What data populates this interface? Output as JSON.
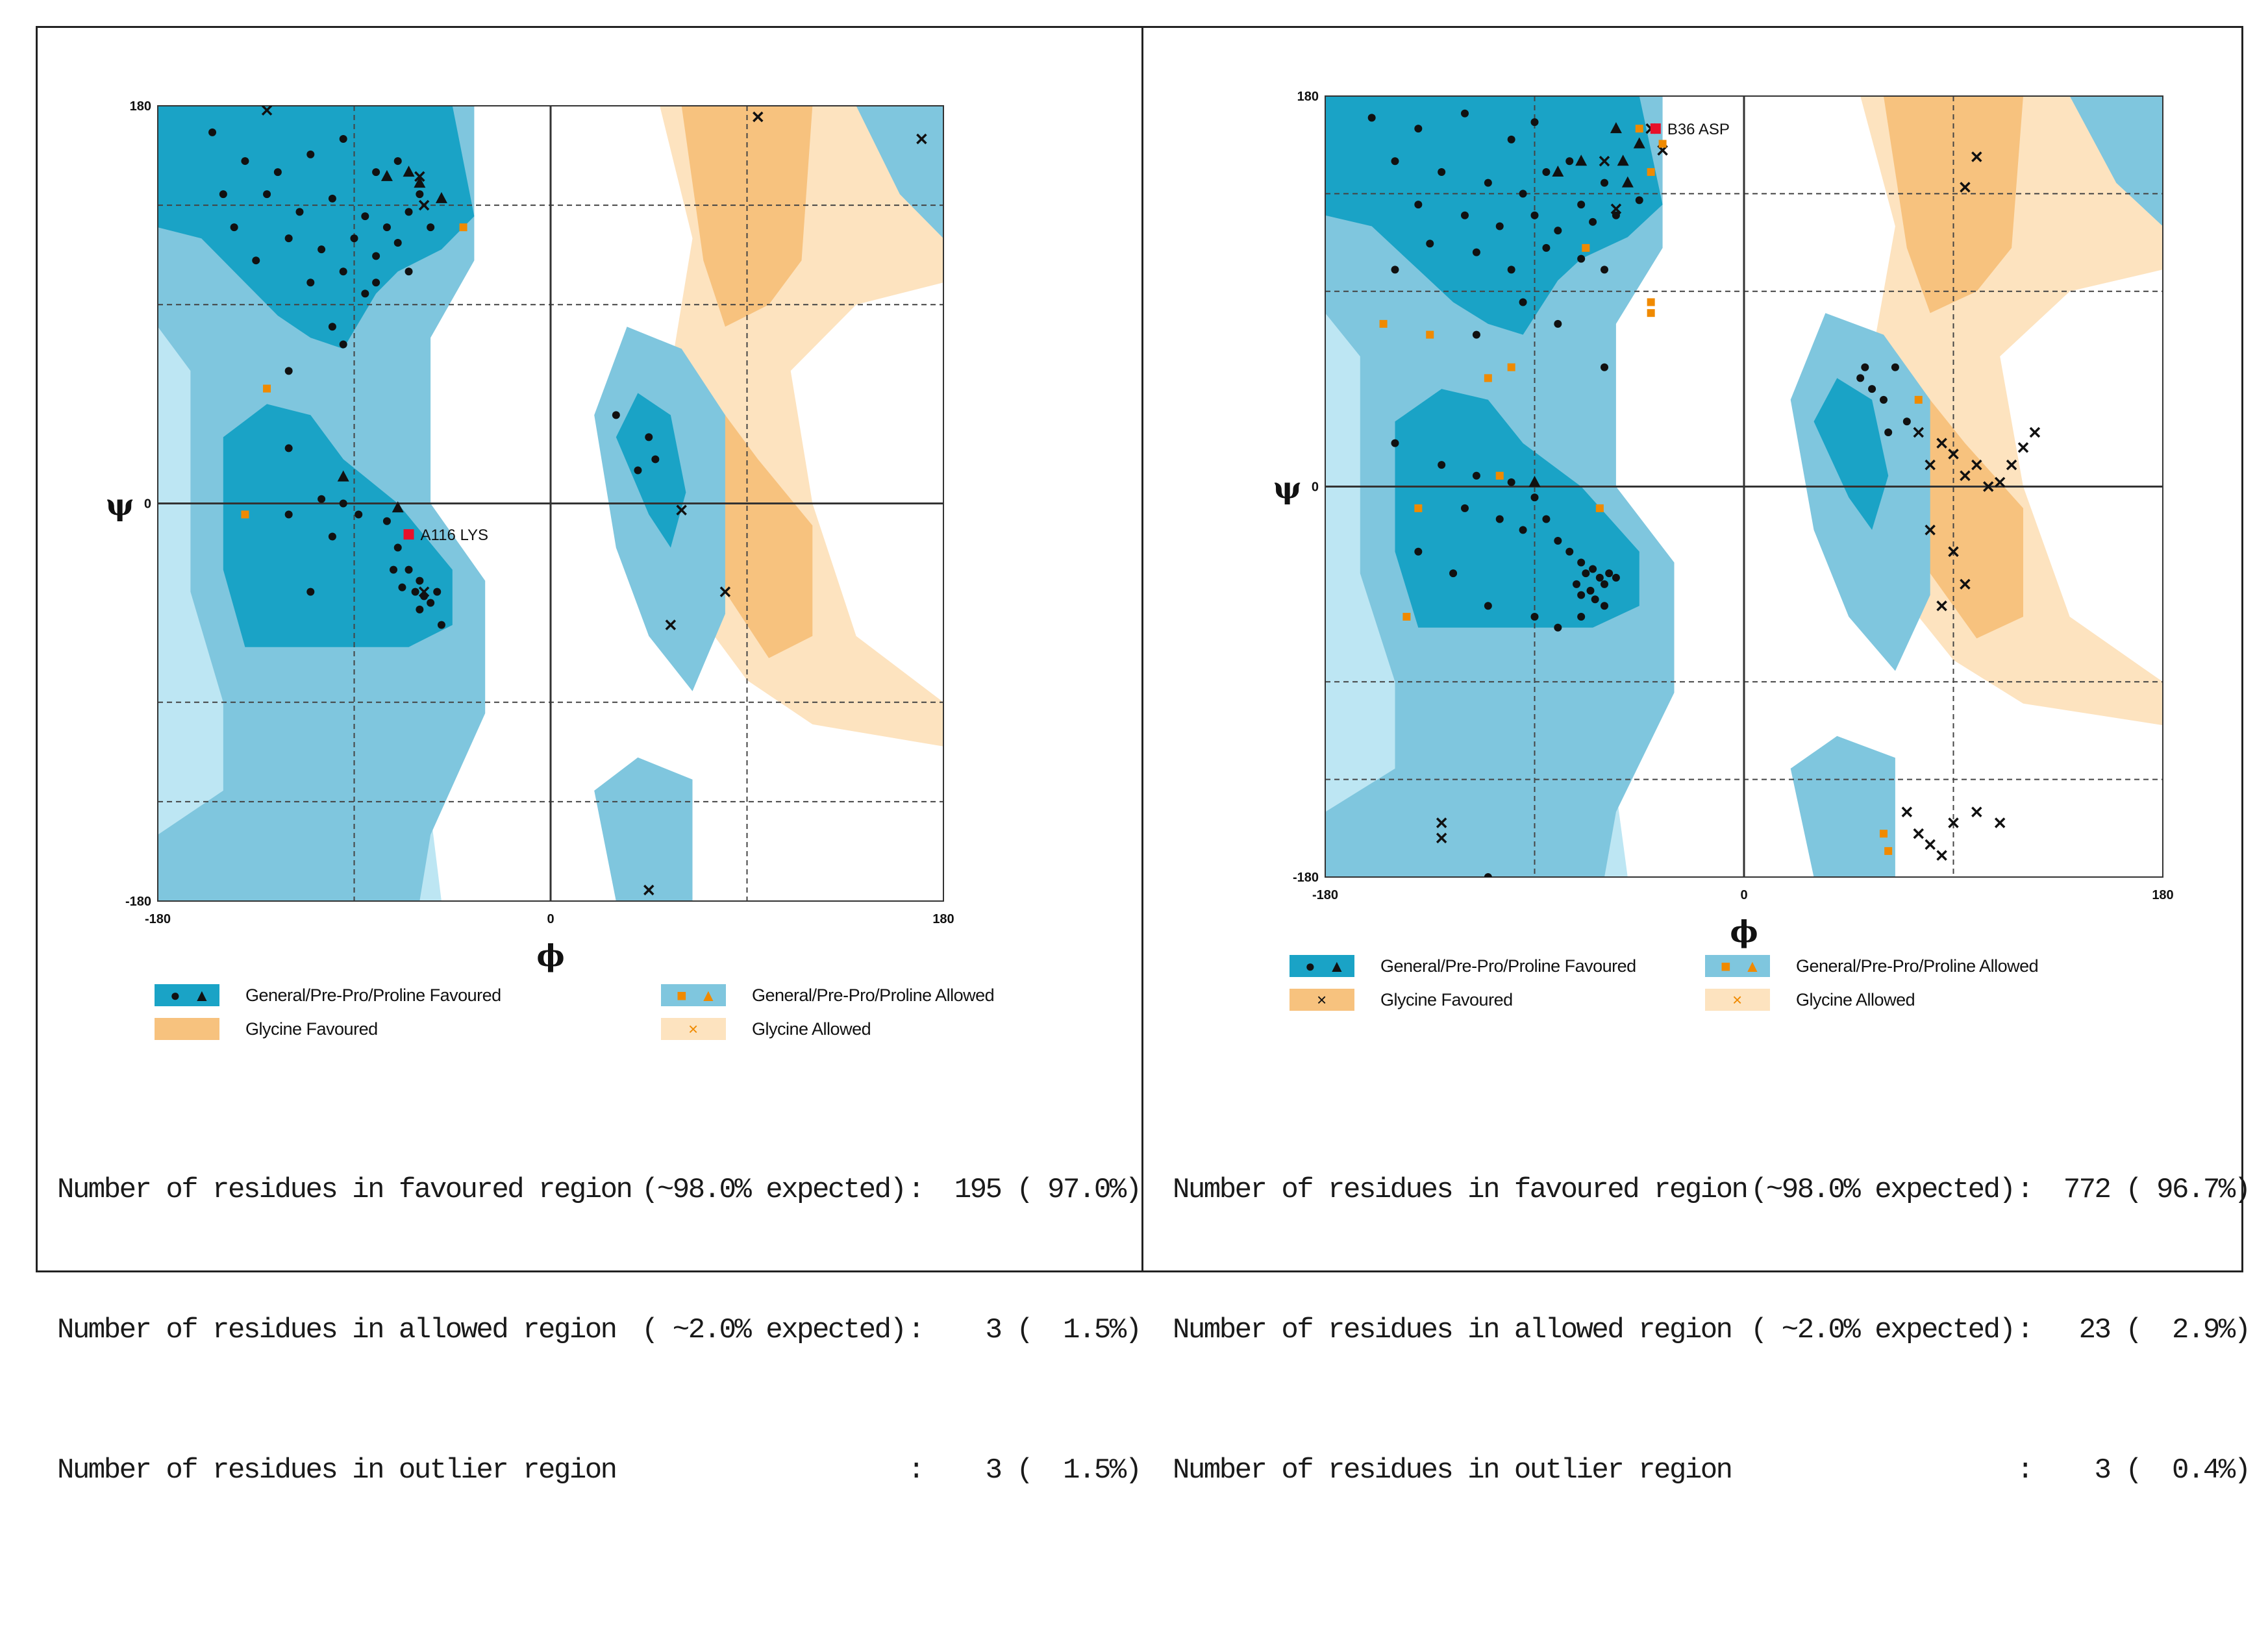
{
  "colors": {
    "general_favoured": "#1aa3c6",
    "general_allowed": "#7fc6de",
    "general_light": "#bde6f3",
    "glycine_favoured": "#f7c27e",
    "glycine_allowed": "#fde3bf",
    "outlier": "#e8102a",
    "allowed_point": "#f08a00",
    "point": "#111111"
  },
  "panels": [
    {
      "axis": {
        "top": "180",
        "bottom": "-180",
        "left": "-180",
        "zero_x": "0",
        "right": "180",
        "zero_y": "0",
        "xlabel": "ϕ",
        "ylabel": "ψ"
      },
      "outlier_label": "A116 LYS",
      "legend": {
        "general_favoured": "General/Pre-Pro/Proline Favoured",
        "general_allowed": "General/Pre-Pro/Proline Allowed",
        "glycine_favoured": "Glycine Favoured",
        "glycine_allowed": "Glycine Allowed"
      },
      "stats": {
        "favoured_label": "Number of residues in favoured region",
        "favoured_expected": "(~98.0% expected)",
        "favoured_value": ":  195 ( 97.0%)",
        "allowed_label": "Number of residues in allowed region",
        "allowed_expected": "( ~2.0% expected)",
        "allowed_value": ":    3 (  1.5%)",
        "outlier_label": "Number of residues in outlier region",
        "outlier_value": ":    3 (  1.5%)"
      }
    },
    {
      "axis": {
        "top": "180",
        "bottom": "-180",
        "left": "-180",
        "zero_x": "0",
        "right": "180",
        "zero_y": "0",
        "xlabel": "ϕ",
        "ylabel": "ψ"
      },
      "outlier_label": "B36 ASP",
      "legend": {
        "general_favoured": "General/Pre-Pro/Proline Favoured",
        "general_allowed": "General/Pre-Pro/Proline Allowed",
        "glycine_favoured": "Glycine Favoured",
        "glycine_allowed": "Glycine Allowed"
      },
      "stats": {
        "favoured_label": "Number of residues in favoured region",
        "favoured_expected": "(~98.0% expected)",
        "favoured_value": ":  772 ( 96.7%)",
        "allowed_label": "Number of residues in allowed region",
        "allowed_expected": "( ~2.0% expected)",
        "allowed_value": ":   23 (  2.9%)",
        "outlier_label": "Number of residues in outlier region",
        "outlier_value": ":    3 (  0.4%)"
      }
    }
  ],
  "chart_data": [
    {
      "type": "scatter",
      "title": "",
      "xlabel": "ϕ",
      "ylabel": "ψ",
      "xlim": [
        -180,
        180
      ],
      "ylim": [
        -180,
        180
      ],
      "grid": true,
      "series": [
        {
          "name": "General/Pre-Pro/Proline Favoured",
          "marker": "dot",
          "points": [
            [
              -155,
              168
            ],
            [
              -140,
              155
            ],
            [
              -125,
              150
            ],
            [
              -110,
              158
            ],
            [
              -95,
              165
            ],
            [
              -80,
              150
            ],
            [
              -70,
              155
            ],
            [
              -60,
              140
            ],
            [
              -130,
              140
            ],
            [
              -115,
              132
            ],
            [
              -100,
              138
            ],
            [
              -85,
              130
            ],
            [
              -75,
              125
            ],
            [
              -65,
              132
            ],
            [
              -145,
              125
            ],
            [
              -120,
              120
            ],
            [
              -105,
              115
            ],
            [
              -90,
              120
            ],
            [
              -80,
              112
            ],
            [
              -70,
              118
            ],
            [
              -55,
              125
            ],
            [
              -135,
              110
            ],
            [
              -110,
              100
            ],
            [
              -95,
              105
            ],
            [
              -85,
              95
            ],
            [
              -65,
              105
            ],
            [
              -150,
              140
            ],
            [
              -100,
              80
            ],
            [
              -80,
              100
            ],
            [
              -95,
              72
            ],
            [
              -120,
              -5
            ],
            [
              -105,
              2
            ],
            [
              -95,
              0
            ],
            [
              -88,
              -5
            ],
            [
              -100,
              -15
            ],
            [
              -120,
              25
            ],
            [
              -75,
              -8
            ],
            [
              -70,
              -20
            ],
            [
              -65,
              -30
            ],
            [
              -60,
              -35
            ],
            [
              -62,
              -40
            ],
            [
              -58,
              -42
            ],
            [
              -68,
              -38
            ],
            [
              -72,
              -30
            ],
            [
              -55,
              -45
            ],
            [
              -60,
              -48
            ],
            [
              -52,
              -40
            ],
            [
              -110,
              -40
            ],
            [
              -50,
              -55
            ],
            [
              -120,
              60
            ],
            [
              30,
              40
            ],
            [
              40,
              15
            ],
            [
              45,
              30
            ],
            [
              48,
              20
            ]
          ]
        },
        {
          "name": "General/Pre-Pro/Proline Favoured (Proline)",
          "marker": "triangle",
          "points": [
            [
              -65,
              150
            ],
            [
              -60,
              145
            ],
            [
              -50,
              138
            ],
            [
              -75,
              148
            ],
            [
              -95,
              12
            ],
            [
              -70,
              -2
            ]
          ]
        },
        {
          "name": "Glycine Favoured",
          "marker": "cross",
          "points": [
            [
              -130,
              178
            ],
            [
              95,
              175
            ],
            [
              170,
              165
            ],
            [
              -60,
              148
            ],
            [
              -58,
              135
            ],
            [
              60,
              -3
            ],
            [
              55,
              -55
            ],
            [
              80,
              -40
            ],
            [
              45,
              -175
            ],
            [
              -58,
              -40
            ]
          ]
        },
        {
          "name": "General/Pre-Pro/Proline Allowed",
          "marker": "dot",
          "color": "orange",
          "points": [
            [
              -40,
              125
            ],
            [
              -130,
              52
            ],
            [
              -140,
              -5
            ]
          ]
        },
        {
          "name": "Outlier",
          "marker": "square",
          "color": "red",
          "points": [
            [
              -65,
              -14
            ]
          ]
        }
      ]
    },
    {
      "type": "scatter",
      "title": "",
      "xlabel": "ϕ",
      "ylabel": "ψ",
      "xlim": [
        -180,
        180
      ],
      "ylim": [
        -180,
        180
      ],
      "grid": true,
      "series": [
        {
          "name": "General/Pre-Pro/Proline Favoured",
          "marker": "dot",
          "points": [
            [
              -160,
              170
            ],
            [
              -140,
              165
            ],
            [
              -120,
              172
            ],
            [
              -100,
              160
            ],
            [
              -90,
              168
            ],
            [
              -75,
              150
            ],
            [
              -150,
              150
            ],
            [
              -130,
              145
            ],
            [
              -110,
              140
            ],
            [
              -95,
              135
            ],
            [
              -85,
              145
            ],
            [
              -70,
              130
            ],
            [
              -60,
              140
            ],
            [
              -140,
              130
            ],
            [
              -120,
              125
            ],
            [
              -105,
              120
            ],
            [
              -90,
              125
            ],
            [
              -80,
              118
            ],
            [
              -65,
              122
            ],
            [
              -55,
              125
            ],
            [
              -45,
              132
            ],
            [
              -135,
              112
            ],
            [
              -115,
              108
            ],
            [
              -100,
              100
            ],
            [
              -85,
              110
            ],
            [
              -70,
              105
            ],
            [
              -60,
              100
            ],
            [
              -150,
              100
            ],
            [
              -95,
              85
            ],
            [
              -80,
              75
            ],
            [
              -115,
              70
            ],
            [
              -60,
              55
            ],
            [
              -150,
              20
            ],
            [
              -130,
              10
            ],
            [
              -115,
              5
            ],
            [
              -100,
              2
            ],
            [
              -90,
              -5
            ],
            [
              -120,
              -10
            ],
            [
              -105,
              -15
            ],
            [
              -95,
              -20
            ],
            [
              -85,
              -15
            ],
            [
              -80,
              -25
            ],
            [
              -75,
              -30
            ],
            [
              -70,
              -35
            ],
            [
              -68,
              -40
            ],
            [
              -65,
              -38
            ],
            [
              -62,
              -42
            ],
            [
              -60,
              -45
            ],
            [
              -58,
              -40
            ],
            [
              -55,
              -42
            ],
            [
              -72,
              -45
            ],
            [
              -70,
              -50
            ],
            [
              -66,
              -48
            ],
            [
              -64,
              -52
            ],
            [
              -60,
              -55
            ],
            [
              -140,
              -30
            ],
            [
              -125,
              -40
            ],
            [
              -110,
              -55
            ],
            [
              -90,
              -60
            ],
            [
              -80,
              -65
            ],
            [
              -70,
              -60
            ],
            [
              50,
              50
            ],
            [
              55,
              45
            ],
            [
              60,
              40
            ],
            [
              65,
              55
            ],
            [
              70,
              30
            ],
            [
              62,
              25
            ],
            [
              52,
              55
            ],
            [
              -110,
              -180
            ]
          ]
        },
        {
          "name": "General/Pre-Pro/Proline Favoured (Proline)",
          "marker": "triangle",
          "points": [
            [
              -55,
              165
            ],
            [
              -52,
              150
            ],
            [
              -45,
              158
            ],
            [
              -50,
              140
            ],
            [
              -70,
              150
            ],
            [
              -80,
              145
            ],
            [
              -90,
              2
            ]
          ]
        },
        {
          "name": "Glycine Favoured",
          "marker": "cross",
          "points": [
            [
              -130,
              -155
            ],
            [
              -130,
              -162
            ],
            [
              -40,
              165
            ],
            [
              -35,
              155
            ],
            [
              -60,
              150
            ],
            [
              -55,
              128
            ],
            [
              100,
              152
            ],
            [
              95,
              138
            ],
            [
              75,
              25
            ],
            [
              80,
              10
            ],
            [
              85,
              20
            ],
            [
              90,
              15
            ],
            [
              95,
              5
            ],
            [
              100,
              10
            ],
            [
              105,
              0
            ],
            [
              110,
              2
            ],
            [
              115,
              10
            ],
            [
              120,
              18
            ],
            [
              125,
              25
            ],
            [
              90,
              -30
            ],
            [
              95,
              -45
            ],
            [
              80,
              -20
            ],
            [
              85,
              -55
            ],
            [
              70,
              -150
            ],
            [
              75,
              -160
            ],
            [
              80,
              -165
            ],
            [
              85,
              -170
            ],
            [
              90,
              -155
            ],
            [
              100,
              -150
            ],
            [
              110,
              -155
            ]
          ]
        },
        {
          "name": "General/Pre-Pro/Proline Allowed",
          "marker": "dot",
          "color": "orange",
          "points": [
            [
              -155,
              75
            ],
            [
              -135,
              70
            ],
            [
              -110,
              50
            ],
            [
              -100,
              55
            ],
            [
              -40,
              80
            ],
            [
              -40,
              85
            ],
            [
              -105,
              5
            ],
            [
              -140,
              -10
            ],
            [
              -145,
              -60
            ],
            [
              -68,
              110
            ],
            [
              -62,
              -10
            ],
            [
              -45,
              165
            ],
            [
              -40,
              145
            ],
            [
              -35,
              158
            ],
            [
              75,
              40
            ],
            [
              60,
              -160
            ],
            [
              62,
              -168
            ]
          ]
        },
        {
          "name": "Outlier",
          "marker": "square",
          "color": "red",
          "points": [
            [
              -38,
              165
            ]
          ]
        }
      ]
    }
  ]
}
